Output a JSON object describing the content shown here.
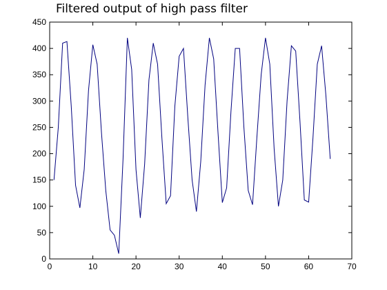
{
  "chart_data": {
    "type": "line",
    "title": "Filtered output of high pass filter",
    "xlabel": "",
    "ylabel": "",
    "xlim": [
      0,
      70
    ],
    "ylim": [
      0,
      450
    ],
    "xticks": [
      0,
      10,
      20,
      30,
      40,
      50,
      60,
      70
    ],
    "yticks": [
      0,
      50,
      100,
      150,
      200,
      250,
      300,
      350,
      400,
      450
    ],
    "grid": false,
    "series": [
      {
        "color": "#00007f",
        "x": [
          1,
          2,
          3,
          4,
          5,
          6,
          7,
          8,
          9,
          10,
          11,
          12,
          13,
          14,
          15,
          16,
          17,
          18,
          19,
          20,
          21,
          22,
          23,
          24,
          25,
          26,
          27,
          28,
          29,
          30,
          31,
          32,
          33,
          34,
          35,
          36,
          37,
          38,
          39,
          40,
          41,
          42,
          43,
          44,
          45,
          46,
          47,
          48,
          49,
          50,
          51,
          52,
          53,
          54,
          55,
          56,
          57,
          58,
          59,
          60,
          61,
          62,
          63,
          64,
          65
        ],
        "y": [
          150,
          250,
          410,
          413,
          290,
          140,
          97,
          170,
          320,
          407,
          370,
          240,
          130,
          55,
          45,
          10,
          190,
          420,
          360,
          170,
          78,
          180,
          340,
          410,
          370,
          230,
          105,
          120,
          290,
          385,
          400,
          270,
          150,
          90,
          185,
          330,
          420,
          380,
          240,
          107,
          135,
          280,
          400,
          400,
          250,
          130,
          103,
          230,
          350,
          420,
          370,
          210,
          100,
          150,
          300,
          405,
          395,
          260,
          112,
          108,
          230,
          370,
          405,
          310,
          190
        ]
      }
    ]
  }
}
